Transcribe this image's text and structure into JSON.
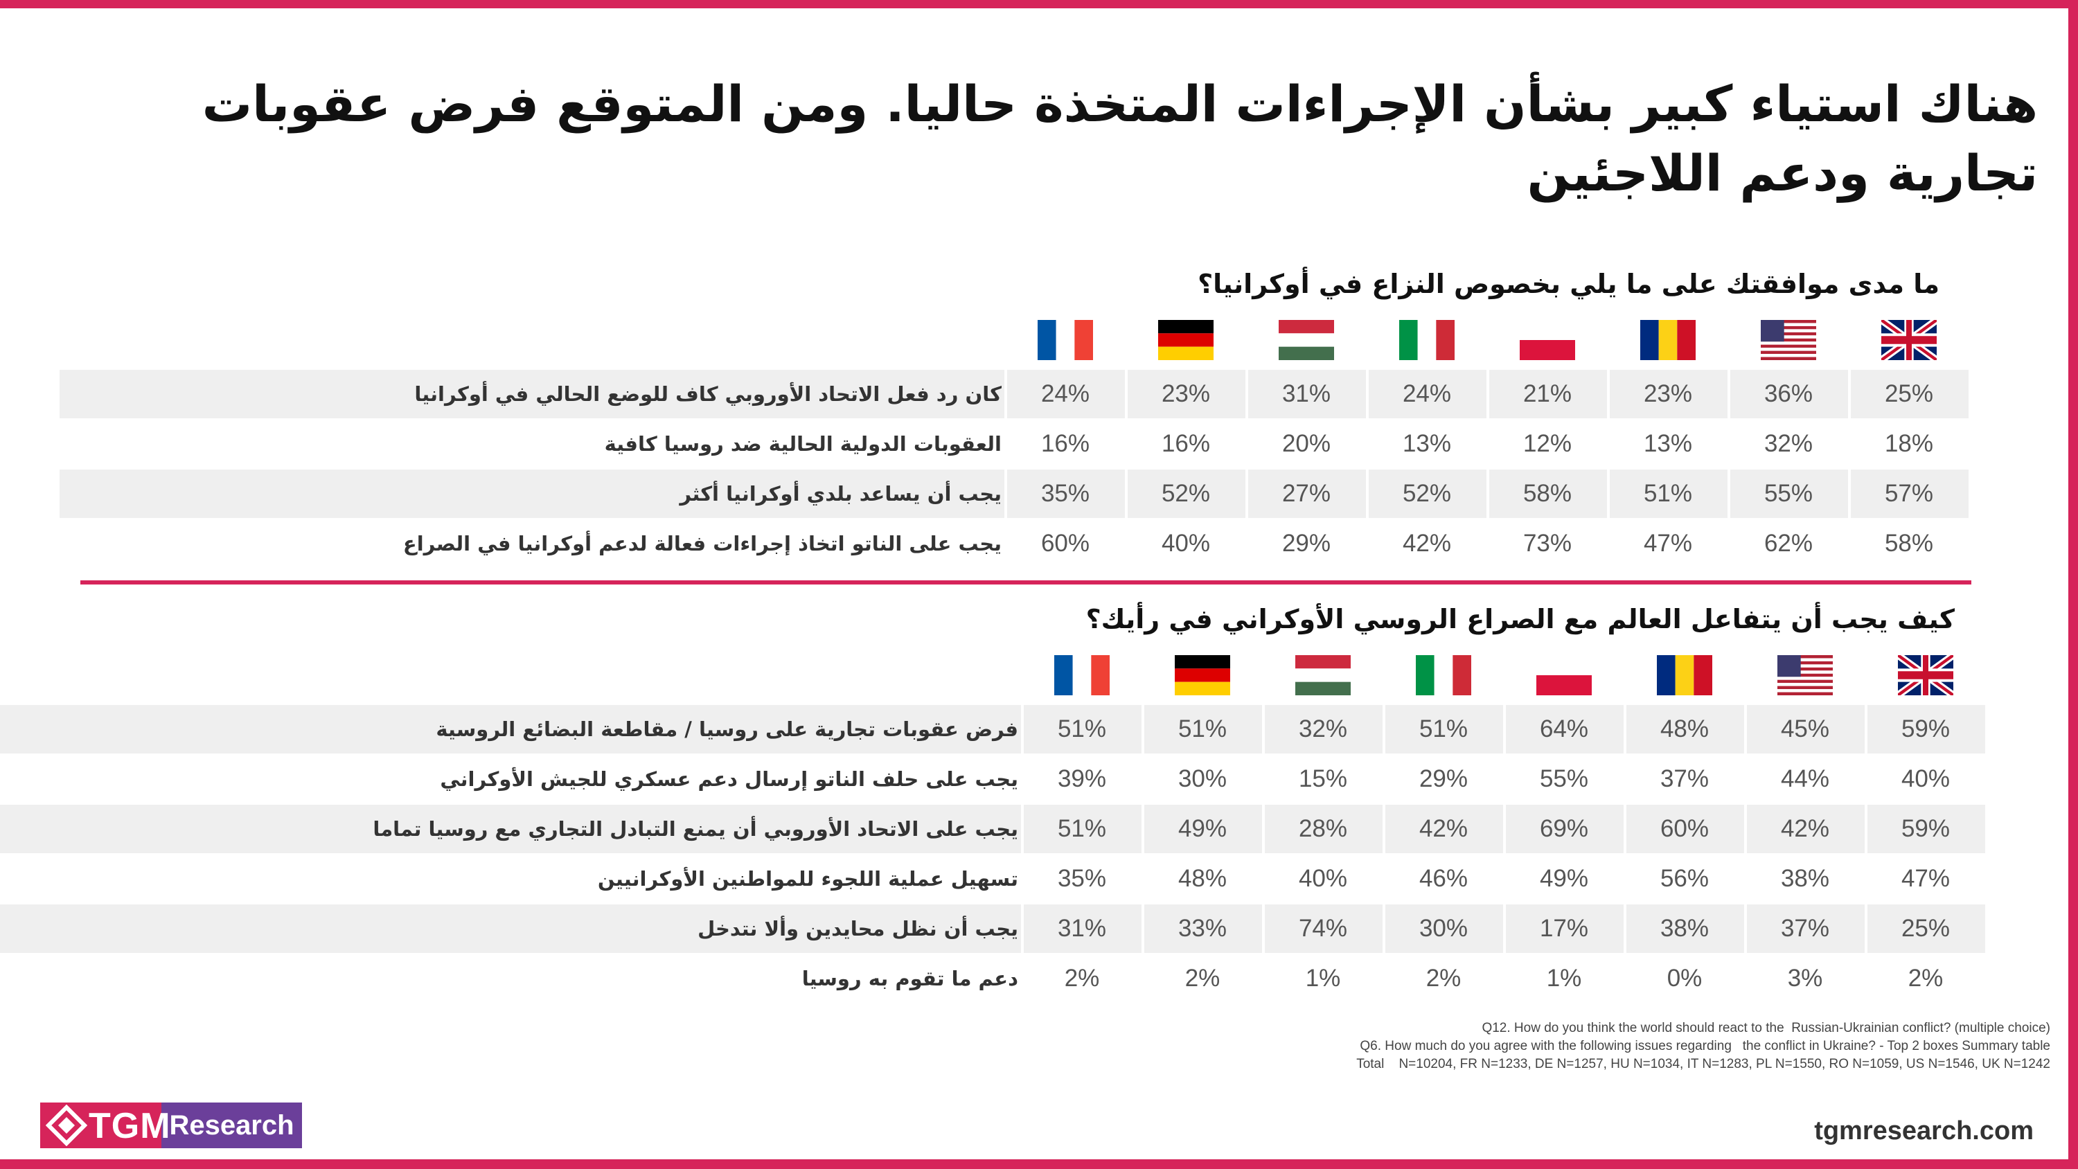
{
  "title": "هناك استياء كبير بشأن الإجراءات المتخذة حاليا. ومن المتوقع فرض عقوبات تجارية ودعم اللاجئين",
  "chart_data": [
    {
      "type": "table",
      "question": "ما مدى موافقتك على ما يلي بخصوص النزاع في أوكرانيا؟",
      "columns": [
        "UK",
        "US",
        "RO",
        "PL",
        "IT",
        "HU",
        "DE",
        "FR"
      ],
      "rows": [
        {
          "label": "كان رد فعل الاتحاد الأوروبي كاف للوضع الحالي في أوكرانيا",
          "values": [
            "25%",
            "36%",
            "23%",
            "21%",
            "24%",
            "31%",
            "23%",
            "24%"
          ]
        },
        {
          "label": "العقوبات الدولية الحالية ضد روسيا كافية",
          "values": [
            "18%",
            "32%",
            "13%",
            "12%",
            "13%",
            "20%",
            "16%",
            "16%"
          ]
        },
        {
          "label": "يجب أن يساعد بلدي أوكرانيا أكثر",
          "values": [
            "57%",
            "55%",
            "51%",
            "58%",
            "52%",
            "27%",
            "52%",
            "35%"
          ]
        },
        {
          "label": "يجب على الناتو اتخاذ إجراءات فعالة لدعم أوكرانيا في الصراع",
          "values": [
            "58%",
            "62%",
            "47%",
            "73%",
            "42%",
            "29%",
            "40%",
            "60%"
          ]
        }
      ]
    },
    {
      "type": "table",
      "question": "كيف يجب أن يتفاعل العالم مع الصراع الروسي الأوكراني في رأيك؟",
      "columns": [
        "UK",
        "US",
        "RO",
        "PL",
        "IT",
        "HU",
        "DE",
        "FR"
      ],
      "rows": [
        {
          "label": "فرض عقوبات تجارية على روسيا / مقاطعة البضائع الروسية",
          "values": [
            "59%",
            "45%",
            "48%",
            "64%",
            "51%",
            "32%",
            "51%",
            "51%"
          ]
        },
        {
          "label": "يجب على حلف الناتو إرسال دعم عسكري للجيش الأوكراني",
          "values": [
            "40%",
            "44%",
            "37%",
            "55%",
            "29%",
            "15%",
            "30%",
            "39%"
          ]
        },
        {
          "label": "يجب على الاتحاد الأوروبي أن يمنع التبادل التجاري مع روسيا تماما",
          "values": [
            "59%",
            "42%",
            "60%",
            "69%",
            "42%",
            "28%",
            "49%",
            "51%"
          ]
        },
        {
          "label": "تسهيل عملية اللجوء للمواطنين الأوكرانيين",
          "values": [
            "47%",
            "38%",
            "56%",
            "49%",
            "46%",
            "40%",
            "48%",
            "35%"
          ]
        },
        {
          "label": "يجب أن نظل محايدين وألا نتدخل",
          "values": [
            "25%",
            "37%",
            "38%",
            "17%",
            "30%",
            "74%",
            "33%",
            "31%"
          ]
        },
        {
          "label": "دعم ما تقوم به روسيا",
          "values": [
            "2%",
            "3%",
            "0%",
            "1%",
            "2%",
            "1%",
            "2%",
            "2%"
          ]
        }
      ]
    }
  ],
  "footnote": [
    "Q12. How do you think the world should react to the  Russian-Ukrainian conflict? (multiple choice)",
    "Q6. How much do you agree with the following issues regarding   the conflict in Ukraine? - Top 2 boxes Summary table",
    "Total    N=10204, FR N=1233, DE N=1257, HU N=1034, IT N=1283, PL N=1550, RO N=1059, US N=1546, UK N=1242"
  ],
  "logo": {
    "tgm": "TGM",
    "research": "Research"
  },
  "website": "tgmresearch.com",
  "colors": {
    "accent": "#d6245a",
    "logo_purple": "#6b3f9a",
    "row_shade": "#efefef"
  },
  "flag_icons": [
    "uk-flag-icon",
    "us-flag-icon",
    "romania-flag-icon",
    "poland-flag-icon",
    "italy-flag-icon",
    "hungary-flag-icon",
    "germany-flag-icon",
    "france-flag-icon"
  ]
}
